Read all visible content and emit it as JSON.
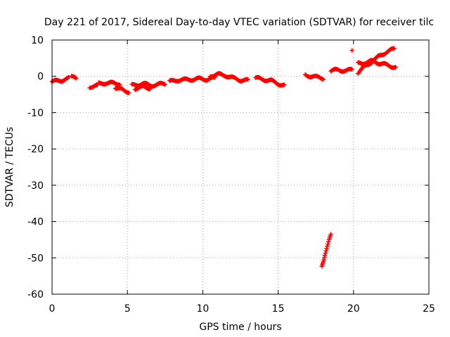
{
  "chart_data": {
    "type": "scatter",
    "title": "Day 221 of 2017, Sidereal Day-to-day VTEC variation (SDTVAR) for receiver tilc",
    "xlabel": "GPS time / hours",
    "ylabel": "SDTVAR / TECUs",
    "xlim": [
      0,
      25
    ],
    "ylim": [
      -60,
      10
    ],
    "xticks": [
      0,
      5,
      10,
      15,
      20,
      25
    ],
    "yticks": [
      -60,
      -50,
      -40,
      -30,
      -20,
      -10,
      0,
      10
    ],
    "grid": true,
    "marker": "plus",
    "color": "#ff0000",
    "series": [
      {
        "name": "SDTVAR",
        "segments": [
          {
            "x": [
              0.0,
              0.3,
              0.6,
              0.9,
              1.1
            ],
            "y": [
              -1.5,
              -1.3,
              -1.1,
              -0.8,
              -0.6
            ]
          },
          {
            "x": [
              1.3,
              1.5,
              1.6
            ],
            "y": [
              0.0,
              0.1,
              -0.2
            ]
          },
          {
            "x": [
              2.5,
              2.7,
              2.9,
              3.0
            ],
            "y": [
              -3.0,
              -3.2,
              -2.8,
              -2.5
            ]
          },
          {
            "x": [
              3.1,
              3.5,
              4.0,
              4.5
            ],
            "y": [
              -2.0,
              -1.8,
              -1.9,
              -2.0
            ]
          },
          {
            "x": [
              4.2,
              4.5,
              4.8,
              5.1
            ],
            "y": [
              -3.0,
              -3.5,
              -4.0,
              -4.2
            ]
          },
          {
            "x": [
              5.3,
              5.7,
              6.0,
              6.5,
              7.0,
              7.5
            ],
            "y": [
              -2.5,
              -2.3,
              -2.0,
              -2.5,
              -2.3,
              -2.0
            ]
          },
          {
            "x": [
              5.5,
              6.0,
              6.5
            ],
            "y": [
              -3.3,
              -3.0,
              -3.2
            ]
          },
          {
            "x": [
              7.8,
              8.3,
              8.8,
              9.3,
              9.8,
              10.3,
              10.8
            ],
            "y": [
              -1.5,
              -1.0,
              -1.0,
              -0.8,
              -0.7,
              -0.8,
              -0.5
            ]
          },
          {
            "x": [
              10.5,
              11.0,
              11.5,
              12.0,
              12.5,
              13.0
            ],
            "y": [
              0.2,
              0.5,
              0.3,
              -0.5,
              -1.0,
              -1.2
            ]
          },
          {
            "x": [
              13.5,
              14.0,
              14.5,
              15.0,
              15.4
            ],
            "y": [
              -0.5,
              -0.8,
              -1.2,
              -2.0,
              -2.5
            ]
          },
          {
            "x": [
              16.8,
              17.2,
              17.6,
              18.0
            ],
            "y": [
              0.5,
              0.0,
              -0.3,
              -0.5
            ]
          },
          {
            "x": [
              18.5,
              19.0,
              19.5,
              19.9
            ],
            "y": [
              1.5,
              1.8,
              1.5,
              1.8
            ]
          },
          {
            "x": [
              17.9,
              18.1,
              18.3,
              18.5
            ],
            "y": [
              -52.5,
              -49.0,
              -46.5,
              -43.5
            ]
          },
          {
            "x": [
              20.3,
              20.7,
              21.2,
              21.7,
              22.2,
              22.7
            ],
            "y": [
              1.0,
              2.5,
              4.0,
              5.5,
              6.8,
              7.5
            ]
          },
          {
            "x": [
              20.3,
              20.8,
              21.3,
              21.8,
              22.3,
              22.8
            ],
            "y": [
              3.5,
              3.8,
              4.2,
              3.5,
              3.0,
              2.5
            ]
          },
          {
            "x": [
              19.9
            ],
            "y": [
              7.5
            ]
          }
        ]
      }
    ]
  }
}
